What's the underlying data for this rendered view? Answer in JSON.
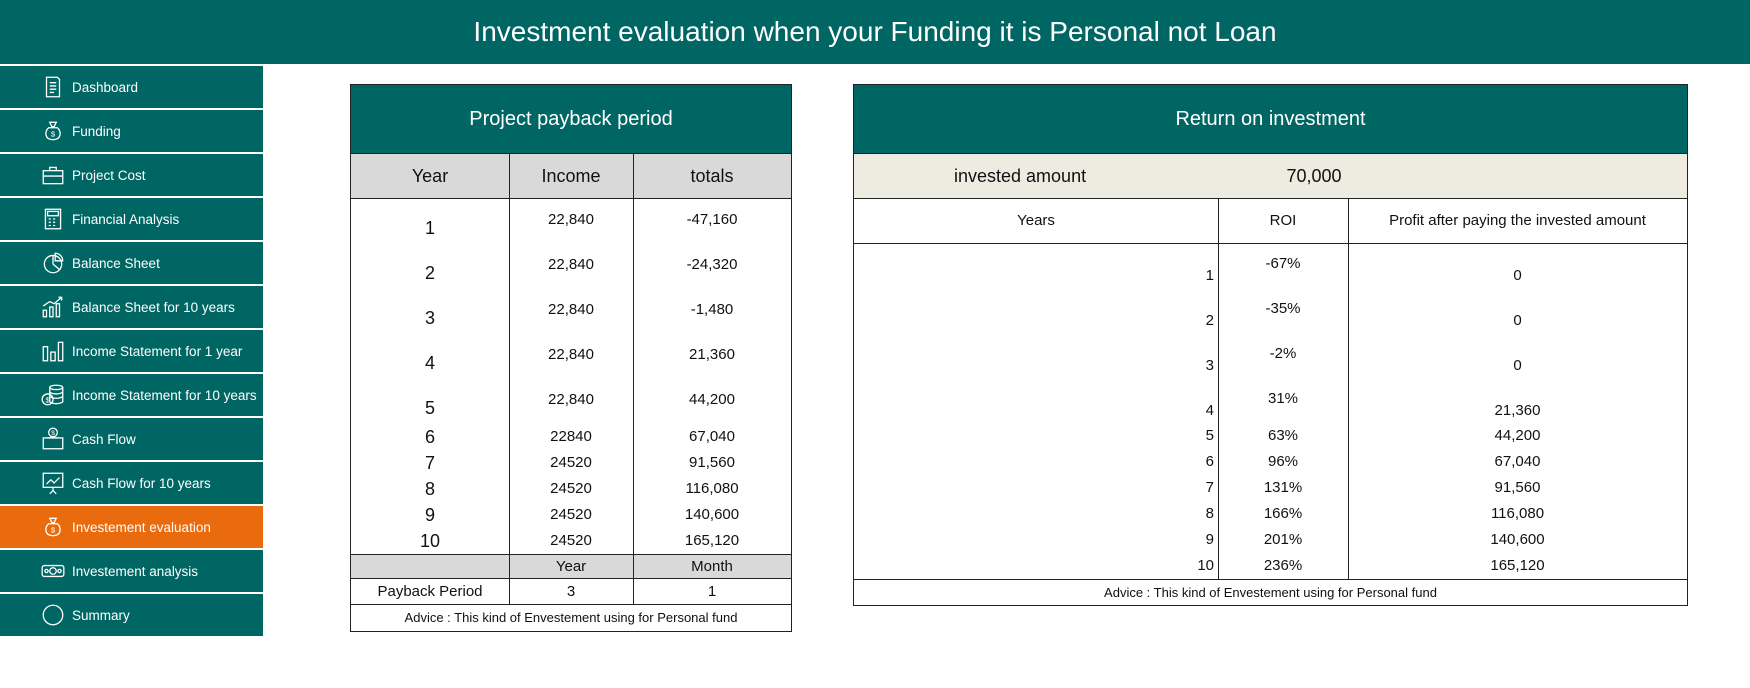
{
  "header": {
    "title": "Investment evaluation when your Funding it is Personal not Loan"
  },
  "sidebar": {
    "items": [
      {
        "label": "Dashboard",
        "icon": "document-icon"
      },
      {
        "label": "Funding",
        "icon": "money-bag-icon"
      },
      {
        "label": "Project Cost",
        "icon": "briefcase-icon"
      },
      {
        "label": "Financial Analysis",
        "icon": "calculator-icon"
      },
      {
        "label": "Balance Sheet",
        "icon": "pie-chart-icon"
      },
      {
        "label": "Balance Sheet for 10 years",
        "icon": "growth-chart-icon"
      },
      {
        "label": "Income Statement for 1 year",
        "icon": "bar-chart-icon"
      },
      {
        "label": "Income Statement for 10 years",
        "icon": "coins-icon"
      },
      {
        "label": "Cash Flow",
        "icon": "cash-box-icon"
      },
      {
        "label": "Cash Flow for 10 years",
        "icon": "presentation-chart-icon"
      },
      {
        "label": "Investement evaluation",
        "icon": "money-bag-icon",
        "active": true
      },
      {
        "label": "Investement analysis",
        "icon": "banknote-icon"
      },
      {
        "label": "Summary",
        "icon": "circle-icon"
      }
    ],
    "colors": {
      "bg": "#006663",
      "active": "#e96b0e"
    }
  },
  "payback": {
    "title": "Project payback period",
    "headers": {
      "year": "Year",
      "income": "Income",
      "totals": "totals"
    },
    "rows": [
      {
        "year": "1",
        "income": "22,840",
        "totals": "-47,160"
      },
      {
        "year": "2",
        "income": "22,840",
        "totals": "-24,320"
      },
      {
        "year": "3",
        "income": "22,840",
        "totals": "-1,480"
      },
      {
        "year": "4",
        "income": "22,840",
        "totals": "21,360"
      },
      {
        "year": "5",
        "income": "22,840",
        "totals": "44,200"
      },
      {
        "year": "6",
        "income": "22840",
        "totals": "67,040"
      },
      {
        "year": "7",
        "income": "24520",
        "totals": "91,560"
      },
      {
        "year": "8",
        "income": "24520",
        "totals": "116,080"
      },
      {
        "year": "9",
        "income": "24520",
        "totals": "140,600"
      },
      {
        "year": "10",
        "income": "24520",
        "totals": "165,120"
      }
    ],
    "period_headers": {
      "year": "Year",
      "month": "Month"
    },
    "period": {
      "label": "Payback Period",
      "year": "3",
      "month": "1"
    },
    "advice": "Advice : This kind of Envestement using for Personal fund"
  },
  "roi": {
    "title": "Return on investment",
    "invested_label": "invested amount",
    "invested_value": "70,000",
    "headers": {
      "years": "Years",
      "roi": "ROI",
      "profit": "Profit after paying the invested amount"
    },
    "rows": [
      {
        "year": "1",
        "roi": "-67%",
        "profit": "0"
      },
      {
        "year": "2",
        "roi": "-35%",
        "profit": "0"
      },
      {
        "year": "3",
        "roi": "-2%",
        "profit": "0"
      },
      {
        "year": "4",
        "roi": "31%",
        "profit": "21,360"
      },
      {
        "year": "5",
        "roi": "63%",
        "profit": "44,200"
      },
      {
        "year": "6",
        "roi": "96%",
        "profit": "67,040"
      },
      {
        "year": "7",
        "roi": "131%",
        "profit": "91,560"
      },
      {
        "year": "8",
        "roi": "166%",
        "profit": "116,080"
      },
      {
        "year": "9",
        "roi": "201%",
        "profit": "140,600"
      },
      {
        "year": "10",
        "roi": "236%",
        "profit": "165,120"
      }
    ],
    "advice": "Advice : This kind of Envestement using for Personal fund"
  }
}
